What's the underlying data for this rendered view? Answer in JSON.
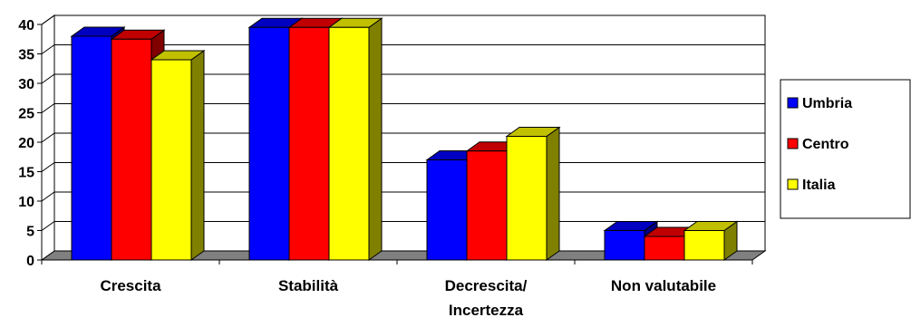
{
  "chart_data": {
    "type": "bar",
    "categories": [
      [
        "Crescita"
      ],
      [
        "Stabilità"
      ],
      [
        "Decrescita/",
        "Incertezza"
      ],
      [
        "Non valutabile"
      ]
    ],
    "series": [
      {
        "name": "Umbria",
        "values": [
          38,
          39.5,
          17,
          5
        ],
        "color": "#0000ff",
        "side": "#000080",
        "top": "#0000c0"
      },
      {
        "name": "Centro",
        "values": [
          37.5,
          39.5,
          18.5,
          4
        ],
        "color": "#ff0000",
        "side": "#800000",
        "top": "#c00000"
      },
      {
        "name": "Italia",
        "values": [
          34,
          39.5,
          21,
          5
        ],
        "color": "#ffff00",
        "side": "#808000",
        "top": "#c0c000"
      }
    ],
    "ylim": [
      0,
      40
    ],
    "yticks": [
      0,
      5,
      10,
      15,
      20,
      25,
      30,
      35,
      40
    ],
    "grid": true,
    "legend_position": "right",
    "three_d": true
  }
}
